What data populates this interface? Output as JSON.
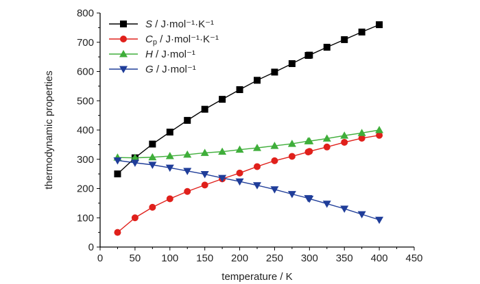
{
  "chart_data": {
    "type": "line",
    "xlabel": "temperature / K",
    "ylabel": "thermodynamic properties",
    "xlim": [
      0,
      450
    ],
    "ylim": [
      0,
      800
    ],
    "xticks": [
      0,
      50,
      100,
      150,
      200,
      250,
      300,
      350,
      400,
      450
    ],
    "yticks": [
      0,
      100,
      200,
      300,
      400,
      500,
      600,
      700,
      800
    ],
    "grid": false,
    "legend_position": "top-left",
    "series": [
      {
        "name": "S / J·mol⁻¹·K⁻¹",
        "legend_main": "S",
        "legend_unit": " / J·mol⁻¹·K⁻¹",
        "color": "#000000",
        "marker": "square",
        "x": [
          25,
          50,
          75,
          100,
          125,
          150,
          175,
          200,
          225,
          250,
          275,
          298.15,
          300,
          325,
          350,
          375,
          400
        ],
        "y": [
          250,
          305,
          352,
          393,
          433,
          471,
          505,
          538,
          570,
          598,
          627,
          655,
          656,
          683,
          709,
          735,
          760
        ]
      },
      {
        "name": "Cp / J·mol⁻¹·K⁻¹",
        "legend_main": "C",
        "legend_sub": "p",
        "legend_unit": " / J·mol⁻¹·K⁻¹",
        "color": "#e0201b",
        "marker": "circle",
        "x": [
          25,
          50,
          75,
          100,
          125,
          150,
          175,
          200,
          225,
          250,
          275,
          298.15,
          300,
          325,
          350,
          375,
          400
        ],
        "y": [
          50,
          100,
          136,
          165,
          190,
          212,
          233,
          253,
          275,
          295,
          310,
          325,
          327,
          342,
          358,
          372,
          382
        ]
      },
      {
        "name": "H / J·mol⁻¹",
        "legend_main": "H",
        "legend_unit": " / J·mol⁻¹",
        "color": "#3fae3a",
        "marker": "triangle-up",
        "x": [
          25,
          50,
          75,
          100,
          125,
          150,
          175,
          200,
          225,
          250,
          275,
          298.15,
          300,
          325,
          350,
          375,
          400
        ],
        "y": [
          306,
          305,
          307,
          311,
          316,
          322,
          326,
          333,
          339,
          346,
          353,
          362,
          362,
          371,
          381,
          390,
          400
        ]
      },
      {
        "name": "G / J·mol⁻¹",
        "legend_main": "G",
        "legend_unit": " / J·mol⁻¹",
        "color": "#1f3d99",
        "marker": "triangle-down",
        "x": [
          25,
          50,
          75,
          100,
          125,
          150,
          175,
          200,
          225,
          250,
          275,
          298.15,
          300,
          325,
          350,
          375,
          400
        ],
        "y": [
          296,
          288,
          281,
          271,
          260,
          249,
          236,
          224,
          211,
          197,
          181,
          167,
          165,
          148,
          131,
          112,
          93
        ]
      }
    ]
  }
}
